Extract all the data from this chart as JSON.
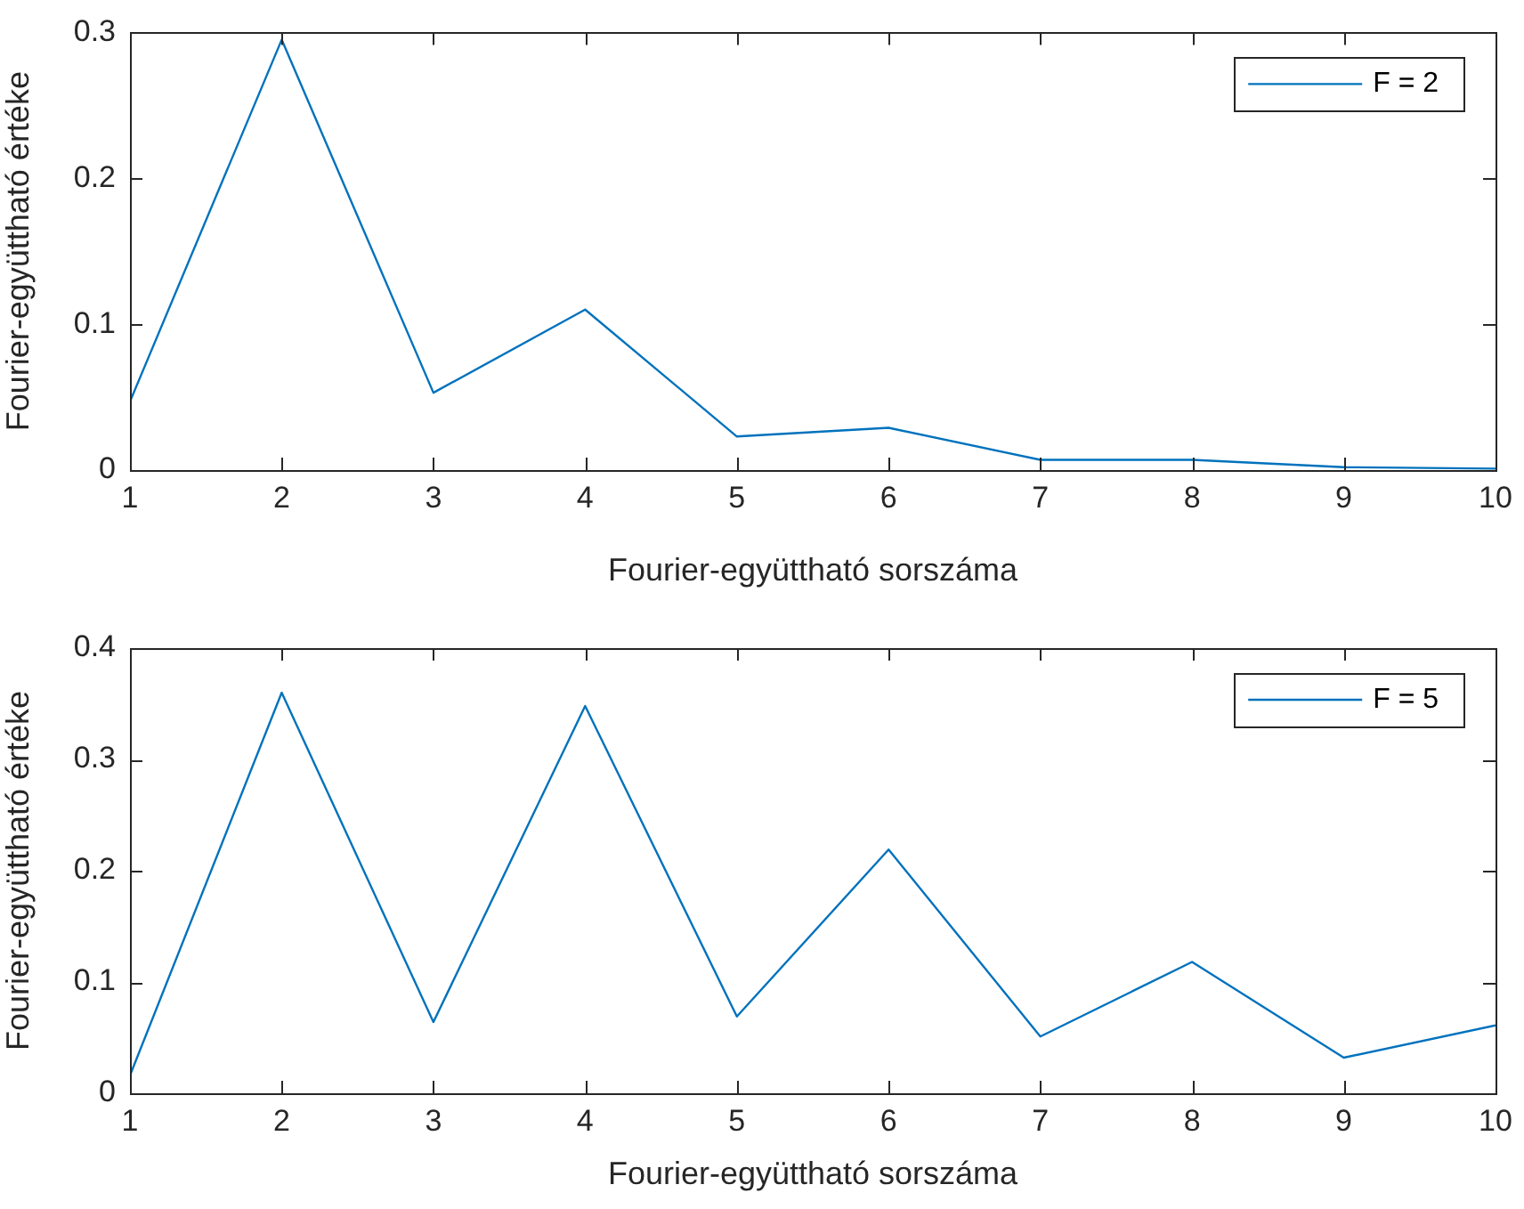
{
  "chart_data": [
    {
      "type": "line",
      "xlabel": "Fourier-együttható sorszáma",
      "ylabel": "Fourier-együttható értéke",
      "x": [
        1,
        2,
        3,
        4,
        5,
        6,
        7,
        8,
        9,
        10
      ],
      "xlim": [
        1,
        10
      ],
      "xticks": [
        1,
        2,
        3,
        4,
        5,
        6,
        7,
        8,
        9,
        10
      ],
      "ylim": [
        0,
        0.3
      ],
      "yticks": [
        0,
        0.1,
        0.2,
        0.3
      ],
      "grid": false,
      "legend": "top right",
      "series": [
        {
          "name": "F = 2",
          "color": "#0072bd",
          "values": [
            0.047,
            0.295,
            0.053,
            0.11,
            0.023,
            0.029,
            0.007,
            0.007,
            0.002,
            0.001
          ]
        }
      ]
    },
    {
      "type": "line",
      "xlabel": "Fourier-együttható sorszáma",
      "ylabel": "Fourier-együttható értéke",
      "x": [
        1,
        2,
        3,
        4,
        5,
        6,
        7,
        8,
        9,
        10
      ],
      "xlim": [
        1,
        10
      ],
      "xticks": [
        1,
        2,
        3,
        4,
        5,
        6,
        7,
        8,
        9,
        10
      ],
      "ylim": [
        0,
        0.4
      ],
      "yticks": [
        0,
        0.1,
        0.2,
        0.3,
        0.4
      ],
      "grid": false,
      "legend": "top right",
      "series": [
        {
          "name": "F = 5",
          "color": "#0072bd",
          "values": [
            0.016,
            0.36,
            0.064,
            0.348,
            0.069,
            0.219,
            0.051,
            0.118,
            0.032,
            0.061
          ]
        }
      ]
    }
  ]
}
